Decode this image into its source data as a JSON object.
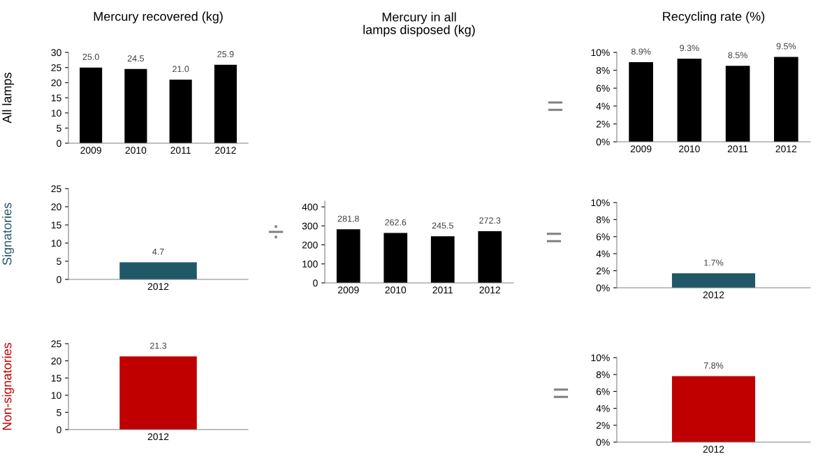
{
  "chart_data": [
    {
      "type": "bar",
      "title": "Mercury recovered (kg)",
      "ylabel": "All lamps",
      "categories": [
        "2009",
        "2010",
        "2011",
        "2012"
      ],
      "values": [
        25.0,
        24.5,
        21.0,
        25.9
      ],
      "value_labels": [
        "25.0",
        "24.5",
        "21.0",
        "25.9"
      ],
      "color": "#000000",
      "ylim": [
        0,
        30
      ],
      "yticks": [
        0,
        5,
        10,
        15,
        20,
        25,
        30
      ]
    },
    {
      "type": "bar",
      "title": "Recycling rate (%)",
      "categories": [
        "2009",
        "2010",
        "2011",
        "2012"
      ],
      "values": [
        8.9,
        9.3,
        8.5,
        9.5
      ],
      "value_labels": [
        "8.9%",
        "9.3%",
        "8.5%",
        "9.5%"
      ],
      "color": "#000000",
      "ylim": [
        0,
        10
      ],
      "yticks": [
        {
          "value": 0,
          "label": "0%"
        },
        {
          "value": 2,
          "label": "2%"
        },
        {
          "value": 4,
          "label": "4%"
        },
        {
          "value": 6,
          "label": "6%"
        },
        {
          "value": 8,
          "label": "8%"
        },
        {
          "value": 10,
          "label": "10%"
        }
      ],
      "annotations": [
        "="
      ]
    },
    {
      "type": "bar",
      "ylabel": "Signatories",
      "categories": [
        "2012"
      ],
      "values": [
        4.7
      ],
      "value_labels": [
        "4.7"
      ],
      "color": "#215868",
      "ylim": [
        0,
        25
      ],
      "yticks": [
        0,
        5,
        10,
        15,
        20,
        25
      ],
      "annotations": [
        "÷"
      ]
    },
    {
      "type": "bar",
      "title": "Mercury in all\nlamps disposed (kg)",
      "categories": [
        "2009",
        "2010",
        "2011",
        "2012"
      ],
      "values": [
        281.8,
        262.6,
        245.5,
        272.3
      ],
      "value_labels": [
        "281.8",
        "262.6",
        "245.5",
        "272.3"
      ],
      "color": "#000000",
      "ylim": [
        0,
        430
      ],
      "yticks": [
        0,
        100,
        200,
        300,
        400
      ]
    },
    {
      "type": "bar",
      "categories": [
        "2012"
      ],
      "values": [
        1.7
      ],
      "value_labels": [
        "1.7%"
      ],
      "color": "#215868",
      "ylim": [
        0,
        10
      ],
      "yticks": [
        {
          "value": 0,
          "label": "0%"
        },
        {
          "value": 2,
          "label": "2%"
        },
        {
          "value": 4,
          "label": "4%"
        },
        {
          "value": 6,
          "label": "6%"
        },
        {
          "value": 8,
          "label": "8%"
        },
        {
          "value": 10,
          "label": "10%"
        }
      ],
      "annotations": [
        "="
      ]
    },
    {
      "type": "bar",
      "ylabel": "Non-signatories",
      "categories": [
        "2012"
      ],
      "values": [
        21.3
      ],
      "value_labels": [
        "21.3"
      ],
      "color": "#c00000",
      "ylim": [
        0,
        25
      ],
      "yticks": [
        0,
        5,
        10,
        15,
        20,
        25
      ]
    },
    {
      "type": "bar",
      "categories": [
        "2012"
      ],
      "values": [
        7.8
      ],
      "value_labels": [
        "7.8%"
      ],
      "color": "#c00000",
      "ylim": [
        0,
        10
      ],
      "yticks": [
        {
          "value": 0,
          "label": "0%"
        },
        {
          "value": 2,
          "label": "2%"
        },
        {
          "value": 4,
          "label": "4%"
        },
        {
          "value": 6,
          "label": "6%"
        },
        {
          "value": 8,
          "label": "8%"
        },
        {
          "value": 10,
          "label": "10%"
        }
      ],
      "annotations": [
        "="
      ]
    }
  ]
}
